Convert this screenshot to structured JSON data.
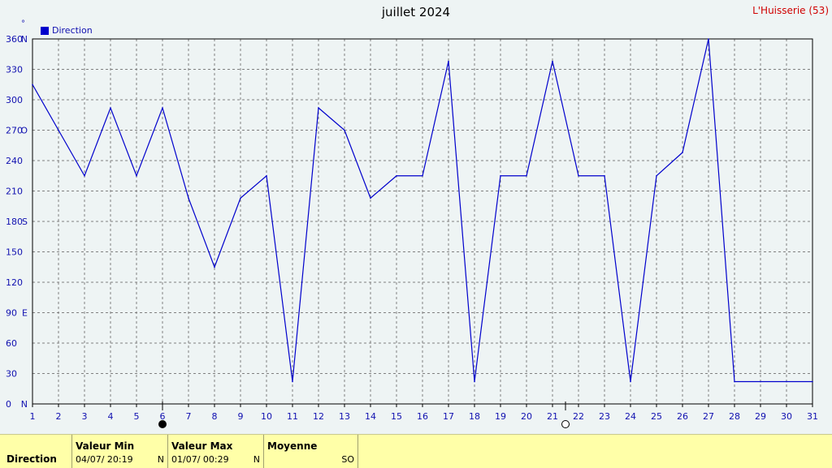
{
  "header": {
    "title": "juillet 2024",
    "station": "L'Huisserie (53)",
    "unit": "°",
    "legend": "Direction"
  },
  "chart_data": {
    "type": "line",
    "title": "juillet 2024",
    "x": [
      1,
      2,
      3,
      4,
      5,
      6,
      7,
      8,
      9,
      10,
      11,
      12,
      13,
      14,
      15,
      16,
      17,
      18,
      19,
      20,
      21,
      22,
      23,
      24,
      25,
      26,
      27,
      28,
      29,
      30,
      31
    ],
    "series": [
      {
        "name": "Direction",
        "color": "#0000cc",
        "values": [
          315,
          270,
          225,
          292,
          225,
          292,
          203,
          135,
          203,
          225,
          22,
          292,
          270,
          203,
          225,
          225,
          338,
          22,
          225,
          225,
          338,
          225,
          225,
          22,
          225,
          248,
          360,
          22,
          22,
          22,
          22
        ]
      }
    ],
    "ylim": [
      0,
      360
    ],
    "yticks": [
      {
        "v": 0,
        "label": "0"
      },
      {
        "v": 30,
        "label": "30"
      },
      {
        "v": 60,
        "label": "60"
      },
      {
        "v": 90,
        "label": "90"
      },
      {
        "v": 120,
        "label": "120"
      },
      {
        "v": 150,
        "label": "150"
      },
      {
        "v": 180,
        "label": "180"
      },
      {
        "v": 210,
        "label": "210"
      },
      {
        "v": 240,
        "label": "240"
      },
      {
        "v": 270,
        "label": "270"
      },
      {
        "v": 300,
        "label": "300"
      },
      {
        "v": 330,
        "label": "330"
      },
      {
        "v": 360,
        "label": "360"
      }
    ],
    "compass": [
      {
        "v": 0,
        "label": "N"
      },
      {
        "v": 90,
        "label": "E"
      },
      {
        "v": 180,
        "label": "S"
      },
      {
        "v": 270,
        "label": "O"
      },
      {
        "v": 360,
        "label": "N"
      }
    ],
    "xticks": [
      1,
      2,
      3,
      4,
      5,
      6,
      7,
      8,
      9,
      10,
      11,
      12,
      13,
      14,
      15,
      16,
      17,
      18,
      19,
      20,
      21,
      22,
      23,
      24,
      25,
      26,
      27,
      28,
      29,
      30,
      31
    ],
    "grid": true,
    "legend_position": "top-left",
    "moon_phases": [
      {
        "day": 6,
        "phase": "new"
      },
      {
        "day": 21.5,
        "phase": "full"
      }
    ]
  },
  "footer": {
    "row_label": "Direction",
    "min": {
      "label": "Valeur Min",
      "date": "04/07/  20:19",
      "dir": "N"
    },
    "max": {
      "label": "Valeur Max",
      "date": "01/07/  00:29",
      "dir": "N"
    },
    "avg": {
      "label": "Moyenne",
      "dir": "SO"
    }
  }
}
